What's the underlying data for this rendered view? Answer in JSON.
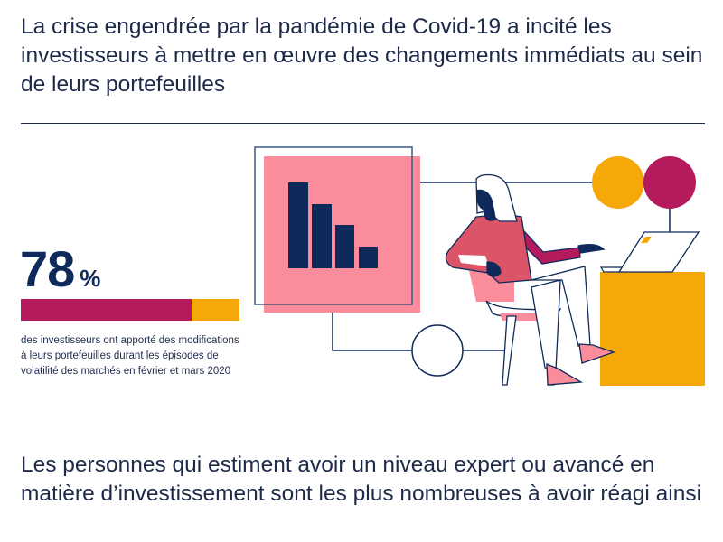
{
  "title": "La crise engendrée par la pandémie de Covid-19 a incité les investisseurs à mettre en œuvre des changements immédiats au sein de leurs portefeuilles",
  "stat": {
    "value": "78",
    "unit": "%",
    "percent": 78,
    "description": "des investisseurs ont apporté des modifications à leurs portefeuilles durant les épisodes de volatilité des marchés en février et mars 2020"
  },
  "subtitle": "Les personnes qui estiment avoir un niveau expert ou avancé en matière d’investissement sont les plus nombreuses à avoir réagi ainsi",
  "colors": {
    "navy": "#0e2a5a",
    "magenta": "#b51a5c",
    "orange": "#f6a808",
    "pink": "#fb8c9c",
    "red": "#dc5468"
  }
}
